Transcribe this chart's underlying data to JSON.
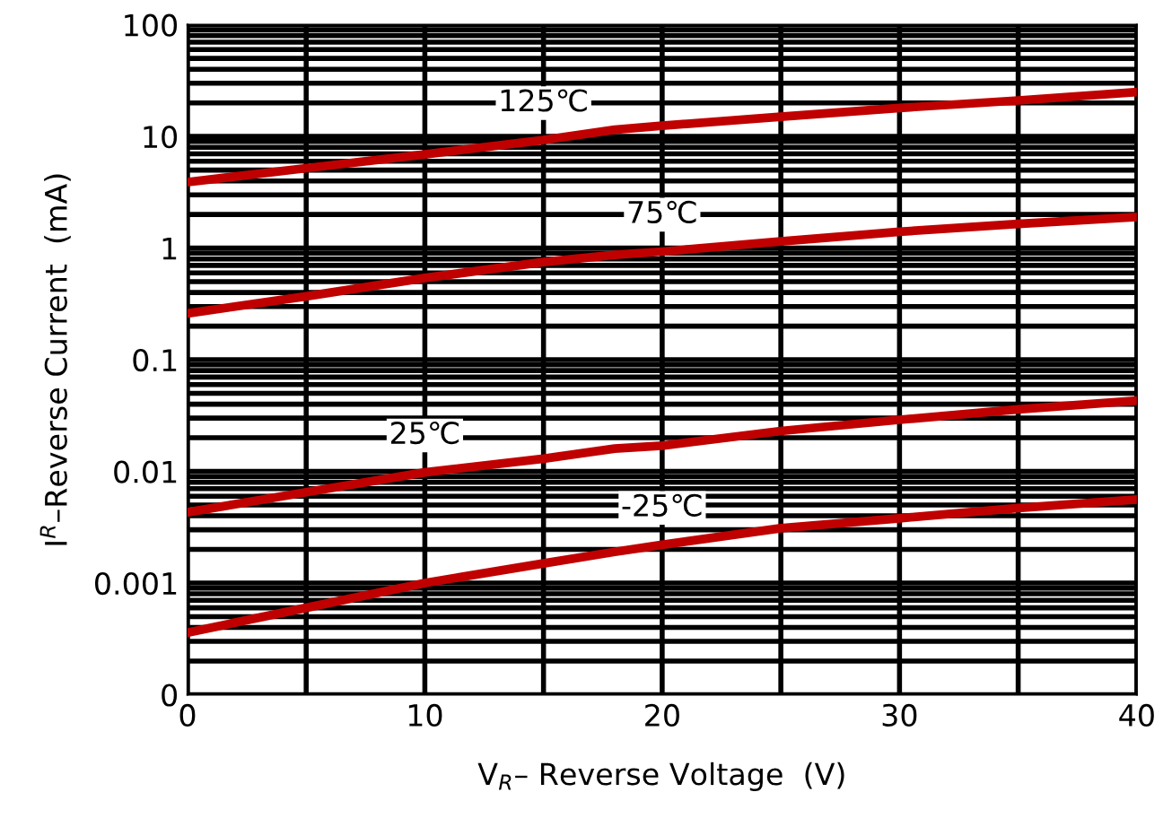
{
  "chart_data": {
    "type": "line",
    "xlabel": "V$_{R}$– Reverse Voltage  (V)",
    "ylabel": "I$^{R}$–Reverse Current  (mA)",
    "x": [
      0,
      5,
      10,
      15,
      18,
      20,
      25,
      30,
      35,
      40
    ],
    "series": [
      {
        "color": "#c00000",
        "values": [
          3.9,
          5.2,
          6.9,
          9.3,
          11.5,
          12.5,
          15,
          18,
          21,
          25
        ]
      },
      {
        "color": "#c00000",
        "values": [
          0.26,
          0.37,
          0.54,
          0.75,
          0.87,
          0.93,
          1.15,
          1.4,
          1.65,
          1.9
        ]
      },
      {
        "color": "#c00000",
        "values": [
          0.0043,
          0.0065,
          0.0098,
          0.013,
          0.016,
          0.017,
          0.023,
          0.029,
          0.036,
          0.043
        ]
      },
      {
        "color": "#c00000",
        "values": [
          0.00036,
          0.0006,
          0.001,
          0.0015,
          0.0019,
          0.0022,
          0.0031,
          0.0038,
          0.0047,
          0.0056
        ]
      }
    ],
    "annotations": [
      {
        "text": "125℃",
        "x": 15,
        "y": 9.3
      },
      {
        "text": "75℃",
        "x": 20,
        "y": 0.93
      },
      {
        "text": "25℃",
        "x": 10,
        "y": 0.0098
      },
      {
        "text": "-25℃",
        "x": 20,
        "y": 0.0022
      }
    ],
    "log": "y",
    "xlim": [
      0,
      40
    ],
    "xticks": [
      0,
      10,
      20,
      30,
      40
    ],
    "ylim": [
      0.0001,
      100
    ],
    "yticks": [
      {
        "value": 0.0001,
        "label": "0"
      },
      {
        "value": 0.001,
        "label": "0.001"
      },
      {
        "value": 0.01,
        "label": "0.01"
      },
      {
        "value": 0.1,
        "label": "0.1"
      },
      {
        "value": 1,
        "label": "1"
      },
      {
        "value": 10,
        "label": "10"
      },
      {
        "value": 100,
        "label": "100"
      }
    ],
    "grid": true,
    "marker": "none",
    "line_style": "solid"
  }
}
